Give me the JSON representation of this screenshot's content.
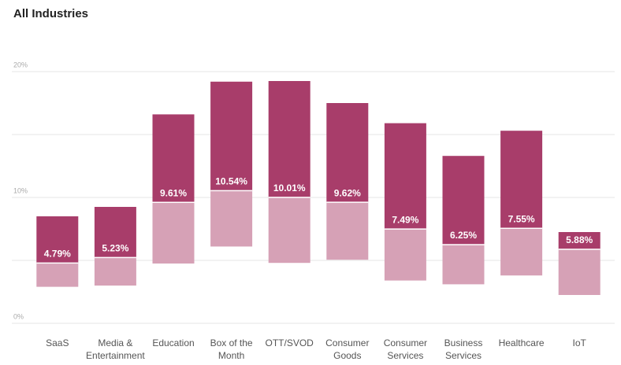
{
  "chart_data": {
    "type": "floating-bar",
    "title": "All Industries",
    "categories": [
      "SaaS",
      "Media & Entertainment",
      "Education",
      "Box of the Month",
      "OTT/SVOD",
      "Consumer Goods",
      "Consumer Services",
      "Business Services",
      "Healthcare",
      "IoT"
    ],
    "lows": [
      2.9,
      3.0,
      4.75,
      6.1,
      4.8,
      5.05,
      3.4,
      3.1,
      3.8,
      2.25
    ],
    "values": [
      4.79,
      5.23,
      9.61,
      10.54,
      10.01,
      9.62,
      7.49,
      6.25,
      7.55,
      5.88
    ],
    "value_labels": [
      "4.79%",
      "5.23%",
      "9.61%",
      "10.54%",
      "10.01%",
      "9.62%",
      "7.49%",
      "6.25%",
      "7.55%",
      "5.88%"
    ],
    "highs": [
      8.5,
      9.25,
      16.6,
      19.2,
      19.25,
      17.5,
      15.9,
      13.3,
      15.3,
      7.25
    ],
    "low_color": "#d6a1b6",
    "high_color": "#a83d6a",
    "ylim": [
      0,
      20
    ],
    "yticks": [
      {
        "value": 0,
        "label": "0%"
      },
      {
        "value": 10,
        "label": "10%"
      },
      {
        "value": 20,
        "label": "20%"
      }
    ],
    "ygrid": [
      0,
      5,
      10,
      15,
      20
    ],
    "grid": true
  }
}
